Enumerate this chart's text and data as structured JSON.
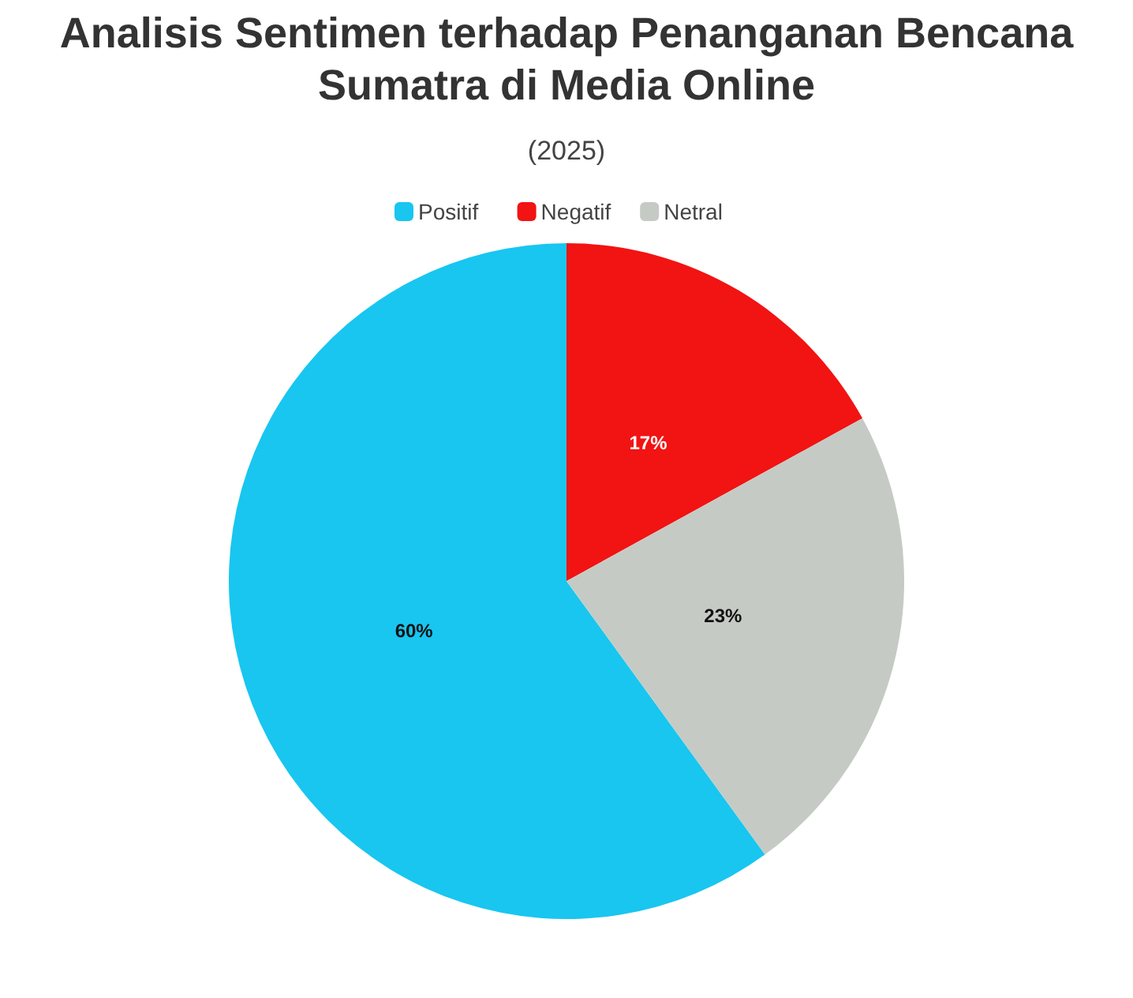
{
  "chart_data": {
    "type": "pie",
    "title": "Analisis Sentimen terhadap Penanganan Bencana Sumatra di Media Online",
    "subtitle": "(2025)",
    "categories": [
      "Positif",
      "Negatif",
      "Netral"
    ],
    "values": [
      60,
      17,
      23
    ],
    "colors": [
      "#18c6f0",
      "#f21313",
      "#c5cbc4"
    ],
    "value_labels": [
      "60%",
      "17%",
      "23%"
    ],
    "legend": "top"
  }
}
